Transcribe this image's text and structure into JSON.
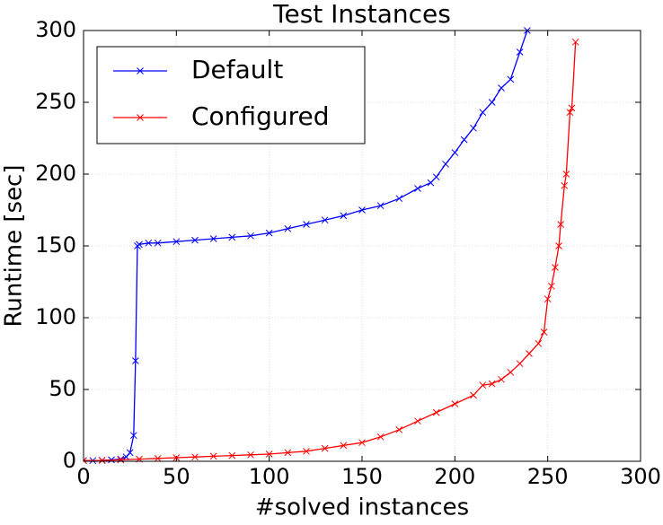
{
  "chart_data": {
    "type": "line",
    "title": "Test Instances",
    "x_label": "#solved instances",
    "y_label": "Runtime [sec]",
    "xlim": [
      0,
      300
    ],
    "ylim": [
      0,
      300
    ],
    "xticks": [
      0,
      50,
      100,
      150,
      200,
      250,
      300
    ],
    "yticks": [
      0,
      50,
      100,
      150,
      200,
      250,
      300
    ],
    "grid": true,
    "legend": "upper left",
    "series": [
      {
        "name": "Default",
        "color": "#0000ff",
        "x": [
          0,
          5,
          10,
          15,
          20,
          23,
          25,
          27,
          28,
          29,
          30,
          35,
          40,
          50,
          60,
          70,
          80,
          90,
          100,
          110,
          120,
          130,
          140,
          150,
          160,
          170,
          180,
          187,
          190,
          195,
          200,
          205,
          210,
          215,
          220,
          225,
          230,
          235,
          239
        ],
        "values": [
          0.5,
          0.5,
          0.6,
          1,
          1.5,
          3,
          6,
          18,
          70,
          150,
          151,
          152,
          152,
          153,
          154,
          155,
          156,
          157,
          159,
          162,
          165,
          168,
          171,
          175,
          178,
          183,
          190,
          194,
          198,
          207,
          215,
          224,
          232,
          243,
          250,
          260,
          266,
          285,
          300
        ]
      },
      {
        "name": "Configured",
        "color": "#ff0000",
        "x": [
          0,
          10,
          20,
          30,
          40,
          50,
          60,
          70,
          80,
          90,
          100,
          110,
          120,
          130,
          140,
          150,
          160,
          170,
          180,
          190,
          200,
          210,
          215,
          220,
          225,
          230,
          235,
          240,
          245,
          248,
          250,
          252,
          254,
          256,
          257,
          259,
          260,
          262,
          263,
          265
        ],
        "values": [
          0.5,
          0.6,
          1,
          1.5,
          2,
          2.5,
          3,
          3.5,
          4,
          4.5,
          5,
          6,
          7,
          9,
          11,
          13,
          17,
          22,
          28,
          34,
          40,
          46,
          53,
          54,
          57,
          62,
          68,
          75,
          82,
          90,
          113,
          122,
          135,
          150,
          165,
          192,
          200,
          243,
          246,
          292
        ]
      }
    ]
  }
}
